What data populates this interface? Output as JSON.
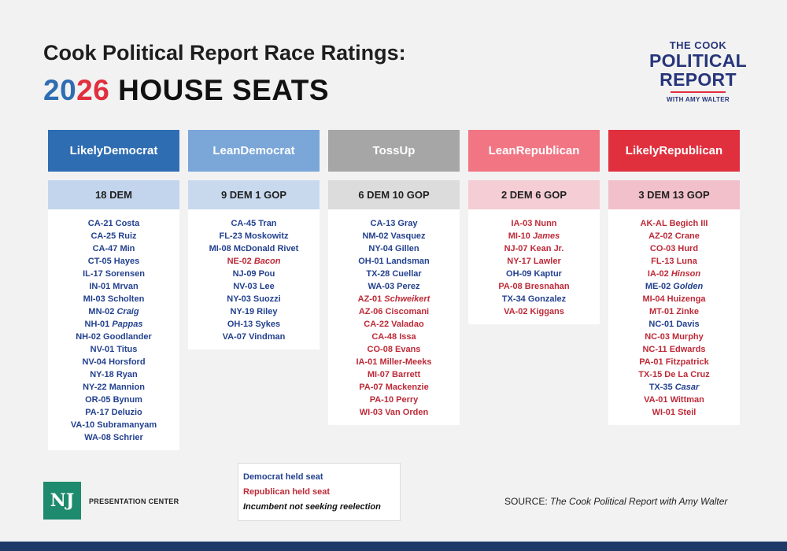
{
  "title": {
    "line1": "Cook Political Report Race Ratings:",
    "year_part1": "20",
    "year_part2": "26",
    "line2_rest": " HOUSE SEATS"
  },
  "logo": {
    "line1": "THE COOK",
    "line2": "POLITICAL",
    "line3": "REPORT",
    "line4": "WITH AMY WALTER"
  },
  "colors": {
    "likely_dem": "#2f6db3",
    "lean_dem": "#7aa6d8",
    "toss_up": "#a6a6a6",
    "lean_rep": "#f17583",
    "likely_rep": "#e0303e",
    "dem_text": "#23418f",
    "rep_text": "#bd2a37"
  },
  "columns": [
    {
      "header": "Likely Democrat",
      "header_l1": "Likely",
      "header_l2": "Democrat",
      "count": "18 DEM",
      "seats": [
        {
          "district": "CA-21",
          "name": "Costa",
          "party": "dem",
          "incumbent_leaving": false
        },
        {
          "district": "CA-25",
          "name": "Ruiz",
          "party": "dem",
          "incumbent_leaving": false
        },
        {
          "district": "CA-47",
          "name": "Min",
          "party": "dem",
          "incumbent_leaving": false
        },
        {
          "district": "CT-05",
          "name": "Hayes",
          "party": "dem",
          "incumbent_leaving": false
        },
        {
          "district": "IL-17",
          "name": "Sorensen",
          "party": "dem",
          "incumbent_leaving": false
        },
        {
          "district": "IN-01",
          "name": "Mrvan",
          "party": "dem",
          "incumbent_leaving": false
        },
        {
          "district": "MI-03",
          "name": "Scholten",
          "party": "dem",
          "incumbent_leaving": false
        },
        {
          "district": "MN-02",
          "name": "Craig",
          "party": "dem",
          "incumbent_leaving": true
        },
        {
          "district": "NH-01",
          "name": "Pappas",
          "party": "dem",
          "incumbent_leaving": true
        },
        {
          "district": "NH-02",
          "name": "Goodlander",
          "party": "dem",
          "incumbent_leaving": false
        },
        {
          "district": "NV-01",
          "name": "Titus",
          "party": "dem",
          "incumbent_leaving": false
        },
        {
          "district": "NV-04",
          "name": "Horsford",
          "party": "dem",
          "incumbent_leaving": false
        },
        {
          "district": "NY-18",
          "name": "Ryan",
          "party": "dem",
          "incumbent_leaving": false
        },
        {
          "district": "NY-22",
          "name": "Mannion",
          "party": "dem",
          "incumbent_leaving": false
        },
        {
          "district": "OR-05",
          "name": "Bynum",
          "party": "dem",
          "incumbent_leaving": false
        },
        {
          "district": "PA-17",
          "name": "Deluzio",
          "party": "dem",
          "incumbent_leaving": false
        },
        {
          "district": "VA-10",
          "name": "Subramanyam",
          "party": "dem",
          "incumbent_leaving": false
        },
        {
          "district": "WA-08",
          "name": "Schrier",
          "party": "dem",
          "incumbent_leaving": false
        }
      ]
    },
    {
      "header": "Lean Democrat",
      "header_l1": "Lean",
      "header_l2": "Democrat",
      "count": "9 DEM 1 GOP",
      "seats": [
        {
          "district": "CA-45",
          "name": "Tran",
          "party": "dem",
          "incumbent_leaving": false
        },
        {
          "district": "FL-23",
          "name": "Moskowitz",
          "party": "dem",
          "incumbent_leaving": false
        },
        {
          "district": "MI-08",
          "name": "McDonald Rivet",
          "party": "dem",
          "incumbent_leaving": false
        },
        {
          "district": "NE-02",
          "name": "Bacon",
          "party": "rep",
          "incumbent_leaving": true
        },
        {
          "district": "NJ-09",
          "name": "Pou",
          "party": "dem",
          "incumbent_leaving": false
        },
        {
          "district": "NV-03",
          "name": "Lee",
          "party": "dem",
          "incumbent_leaving": false
        },
        {
          "district": "NY-03",
          "name": "Suozzi",
          "party": "dem",
          "incumbent_leaving": false
        },
        {
          "district": "NY-19",
          "name": "Riley",
          "party": "dem",
          "incumbent_leaving": false
        },
        {
          "district": "OH-13",
          "name": "Sykes",
          "party": "dem",
          "incumbent_leaving": false
        },
        {
          "district": "VA-07",
          "name": "Vindman",
          "party": "dem",
          "incumbent_leaving": false
        }
      ]
    },
    {
      "header": "Toss Up",
      "header_l1": "Toss",
      "header_l2": "Up",
      "count": "6 DEM 10 GOP",
      "seats": [
        {
          "district": "CA-13",
          "name": "Gray",
          "party": "dem",
          "incumbent_leaving": false
        },
        {
          "district": "NM-02",
          "name": "Vasquez",
          "party": "dem",
          "incumbent_leaving": false
        },
        {
          "district": "NY-04",
          "name": "Gillen",
          "party": "dem",
          "incumbent_leaving": false
        },
        {
          "district": "OH-01",
          "name": "Landsman",
          "party": "dem",
          "incumbent_leaving": false
        },
        {
          "district": "TX-28",
          "name": "Cuellar",
          "party": "dem",
          "incumbent_leaving": false
        },
        {
          "district": "WA-03",
          "name": "Perez",
          "party": "dem",
          "incumbent_leaving": false
        },
        {
          "district": "AZ-01",
          "name": "Schweikert",
          "party": "rep",
          "incumbent_leaving": true
        },
        {
          "district": "AZ-06",
          "name": "Ciscomani",
          "party": "rep",
          "incumbent_leaving": false
        },
        {
          "district": "CA-22",
          "name": "Valadao",
          "party": "rep",
          "incumbent_leaving": false
        },
        {
          "district": "CA-48",
          "name": "Issa",
          "party": "rep",
          "incumbent_leaving": false
        },
        {
          "district": "CO-08",
          "name": "Evans",
          "party": "rep",
          "incumbent_leaving": false
        },
        {
          "district": "IA-01",
          "name": "Miller-Meeks",
          "party": "rep",
          "incumbent_leaving": false
        },
        {
          "district": "MI-07",
          "name": "Barrett",
          "party": "rep",
          "incumbent_leaving": false
        },
        {
          "district": "PA-07",
          "name": "Mackenzie",
          "party": "rep",
          "incumbent_leaving": false
        },
        {
          "district": "PA-10",
          "name": "Perry",
          "party": "rep",
          "incumbent_leaving": false
        },
        {
          "district": "WI-03",
          "name": "Van Orden",
          "party": "rep",
          "incumbent_leaving": false
        }
      ]
    },
    {
      "header": "Lean Republican",
      "header_l1": "Lean",
      "header_l2": "Republican",
      "count": "2 DEM 6 GOP",
      "seats": [
        {
          "district": "IA-03",
          "name": "Nunn",
          "party": "rep",
          "incumbent_leaving": false
        },
        {
          "district": "MI-10",
          "name": "James",
          "party": "rep",
          "incumbent_leaving": true
        },
        {
          "district": "NJ-07",
          "name": "Kean Jr.",
          "party": "rep",
          "incumbent_leaving": false
        },
        {
          "district": "NY-17",
          "name": "Lawler",
          "party": "rep",
          "incumbent_leaving": false
        },
        {
          "district": "OH-09",
          "name": "Kaptur",
          "party": "dem",
          "incumbent_leaving": false
        },
        {
          "district": "PA-08",
          "name": "Bresnahan",
          "party": "rep",
          "incumbent_leaving": false
        },
        {
          "district": "TX-34",
          "name": "Gonzalez",
          "party": "dem",
          "incumbent_leaving": false
        },
        {
          "district": "VA-02",
          "name": "Kiggans",
          "party": "rep",
          "incumbent_leaving": false
        }
      ]
    },
    {
      "header": "Likely Republican",
      "header_l1": "Likely",
      "header_l2": "Republican",
      "count": "3 DEM 13 GOP",
      "seats": [
        {
          "district": "AK-AL",
          "name": "Begich III",
          "party": "rep",
          "incumbent_leaving": false
        },
        {
          "district": "AZ-02",
          "name": "Crane",
          "party": "rep",
          "incumbent_leaving": false
        },
        {
          "district": "CO-03",
          "name": "Hurd",
          "party": "rep",
          "incumbent_leaving": false
        },
        {
          "district": "FL-13",
          "name": "Luna",
          "party": "rep",
          "incumbent_leaving": false
        },
        {
          "district": "IA-02",
          "name": "Hinson",
          "party": "rep",
          "incumbent_leaving": true
        },
        {
          "district": "ME-02",
          "name": "Golden",
          "party": "dem",
          "incumbent_leaving": true
        },
        {
          "district": "MI-04",
          "name": "Huizenga",
          "party": "rep",
          "incumbent_leaving": false
        },
        {
          "district": "MT-01",
          "name": "Zinke",
          "party": "rep",
          "incumbent_leaving": false
        },
        {
          "district": "NC-01",
          "name": "Davis",
          "party": "dem",
          "incumbent_leaving": false
        },
        {
          "district": "NC-03",
          "name": "Murphy",
          "party": "rep",
          "incumbent_leaving": false
        },
        {
          "district": "NC-11",
          "name": "Edwards",
          "party": "rep",
          "incumbent_leaving": false
        },
        {
          "district": "PA-01",
          "name": "Fitzpatrick",
          "party": "rep",
          "incumbent_leaving": false
        },
        {
          "district": "TX-15",
          "name": "De La Cruz",
          "party": "rep",
          "incumbent_leaving": false
        },
        {
          "district": "TX-35",
          "name": "Casar",
          "party": "dem",
          "incumbent_leaving": true
        },
        {
          "district": "VA-01",
          "name": "Wittman",
          "party": "rep",
          "incumbent_leaving": false
        },
        {
          "district": "WI-01",
          "name": "Steil",
          "party": "rep",
          "incumbent_leaving": false
        }
      ]
    }
  ],
  "legend": {
    "dem": "Democrat held seat",
    "rep": "Republican held seat",
    "incumbent": "Incumbent not seeking reelection"
  },
  "footer": {
    "nj_logo": "NJ",
    "presentation_center": "PRESENTATION CENTER",
    "source_label": "SOURCE: ",
    "source_text": "The Cook Political Report with Amy Walter"
  }
}
